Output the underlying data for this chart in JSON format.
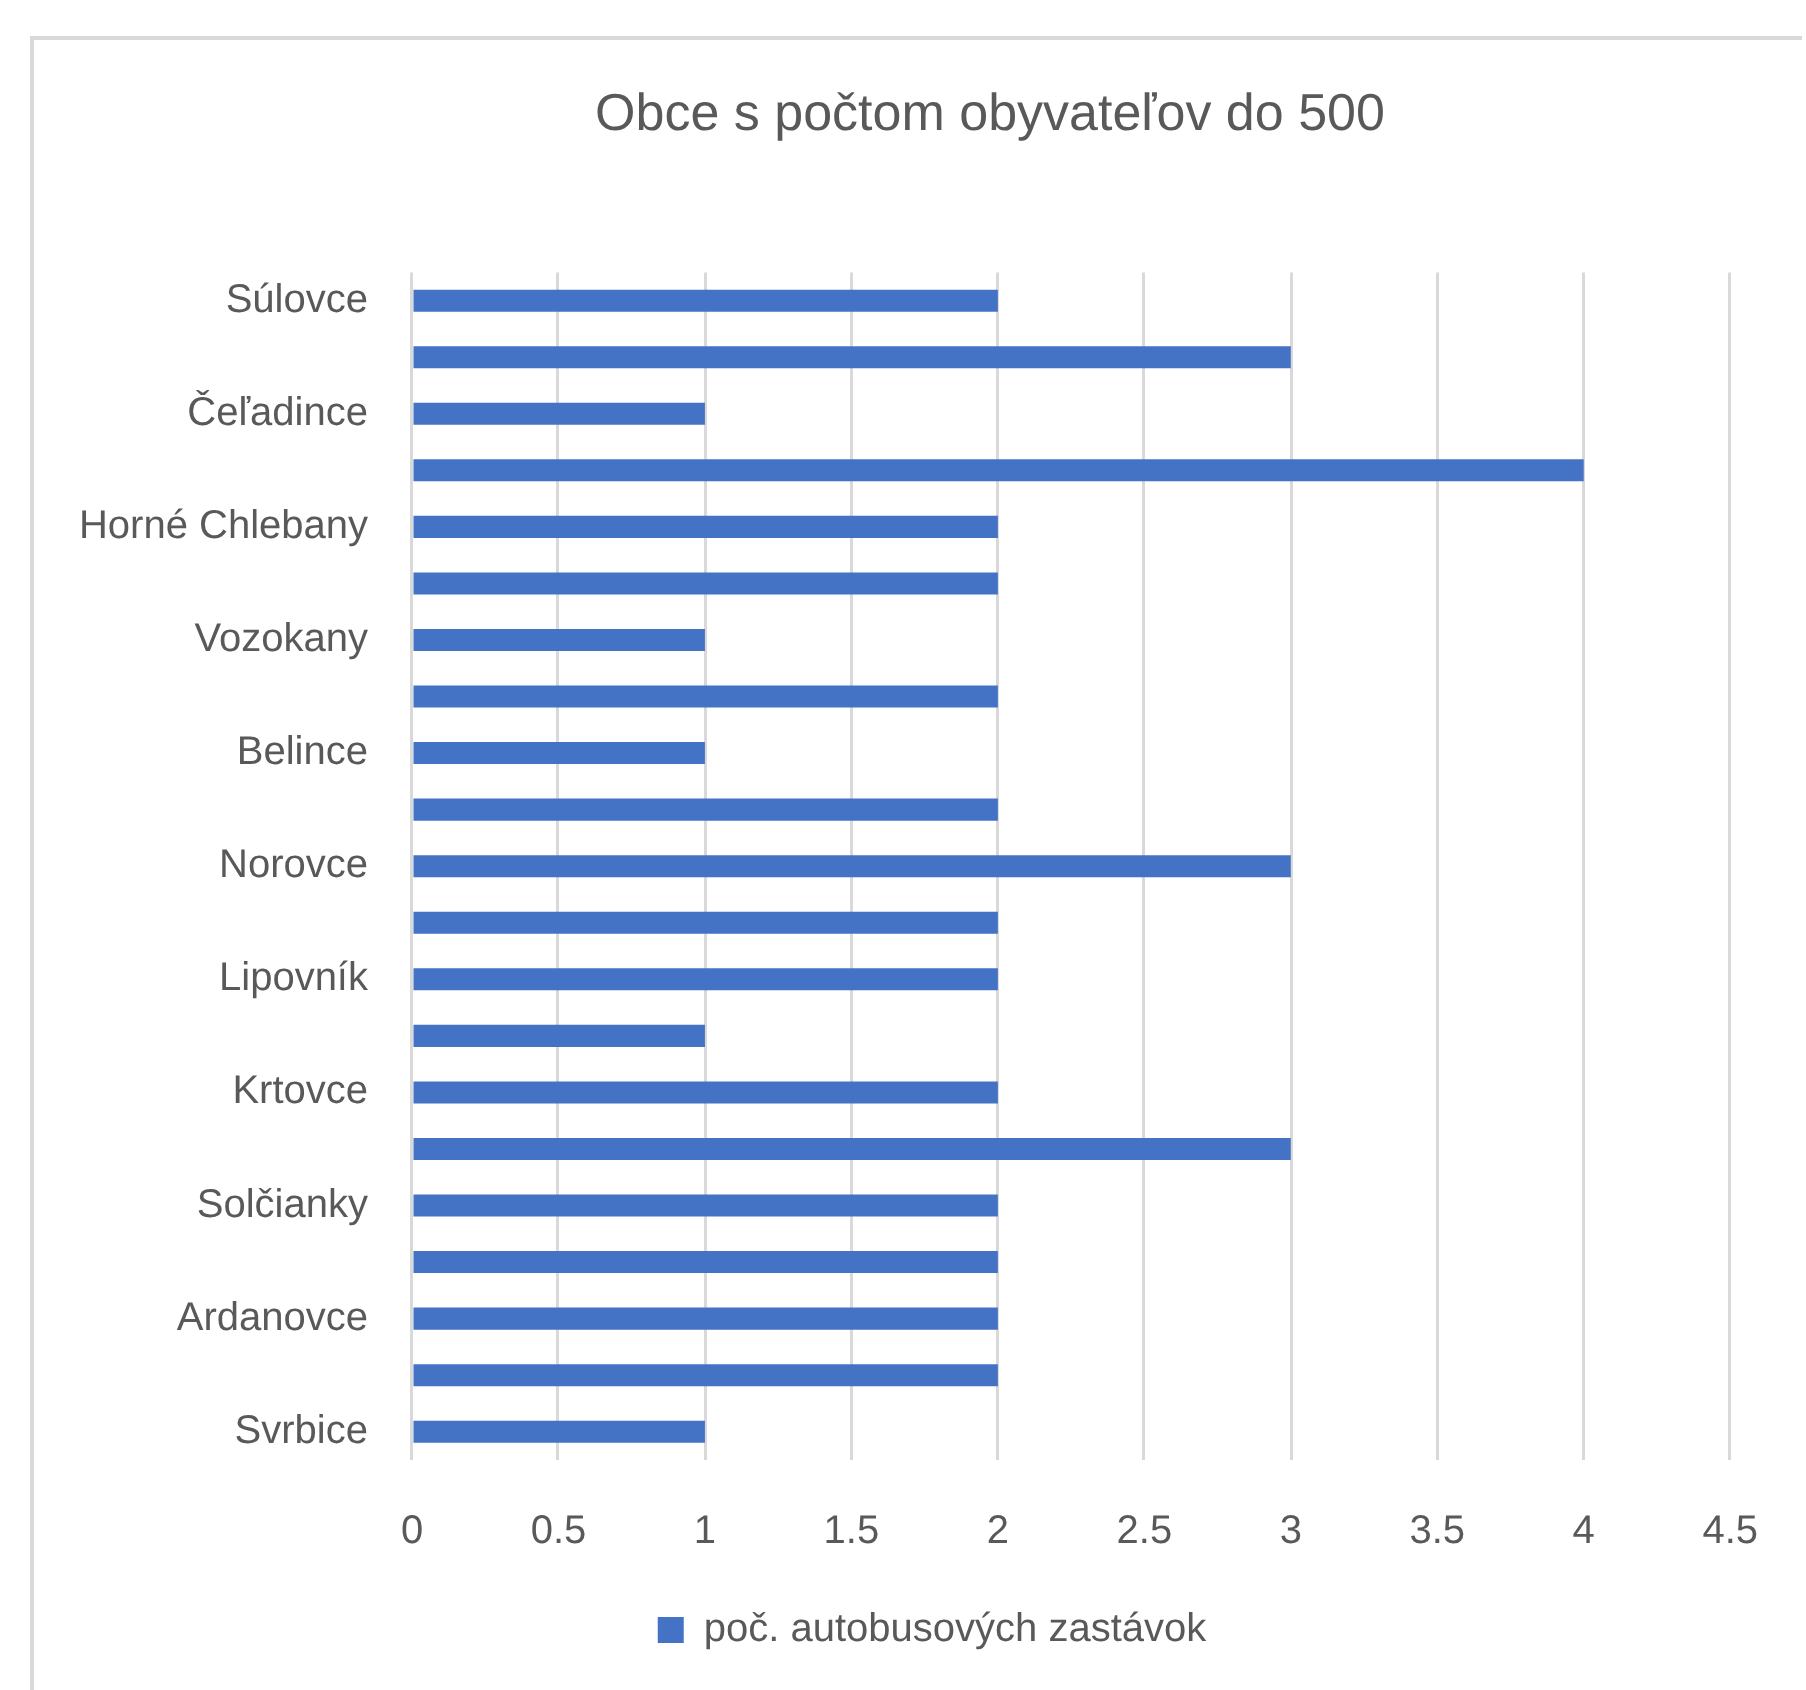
{
  "chart_data": {
    "type": "bar",
    "orientation": "horizontal",
    "title": "Obce s počtom obyvateľov do 500",
    "categories": [
      "Súlovce",
      null,
      "Čeľadince",
      null,
      "Horné Chlebany",
      null,
      "Vozokany",
      null,
      "Belince",
      null,
      "Norovce",
      null,
      "Lipovník",
      null,
      "Krtovce",
      null,
      "Solčianky",
      null,
      "Ardanovce",
      null,
      "Svrbice"
    ],
    "series": [
      {
        "name": "poč. autobusových zastávok",
        "color": "#4472c4",
        "values": [
          2,
          3,
          1,
          4,
          2,
          2,
          1,
          2,
          1,
          2,
          3,
          2,
          2,
          1,
          2,
          3,
          2,
          2,
          2,
          2,
          1
        ]
      }
    ],
    "xlim": [
      0,
      4.5
    ],
    "xticks": [
      0,
      0.5,
      1,
      1.5,
      2,
      2.5,
      3,
      3.5,
      4,
      4.5
    ],
    "grid": "x",
    "legend": "bottom"
  }
}
